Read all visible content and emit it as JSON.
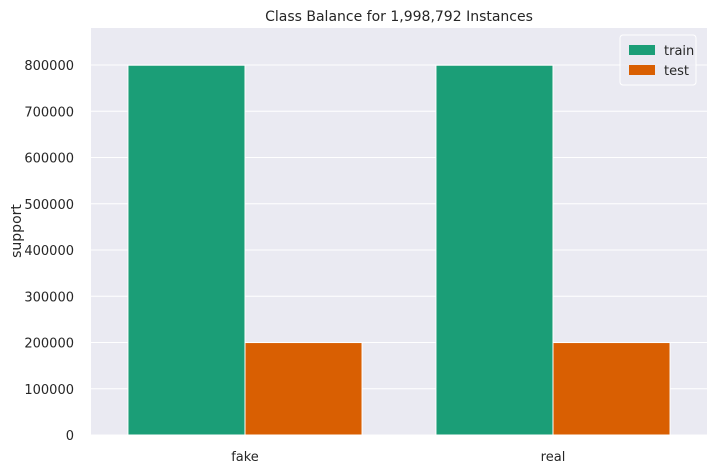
{
  "chart_data": {
    "type": "bar",
    "title": "Class Balance for 1,998,792 Instances",
    "xlabel": "",
    "ylabel": "support",
    "categories": [
      "fake",
      "real"
    ],
    "series": [
      {
        "name": "train",
        "values": [
          799517,
          799517
        ],
        "color": "#1b9e77"
      },
      {
        "name": "test",
        "values": [
          199879,
          199879
        ],
        "color": "#d95f02"
      }
    ],
    "ylim": [
      0,
      880000
    ],
    "yticks": [
      0,
      100000,
      200000,
      300000,
      400000,
      500000,
      600000,
      700000,
      800000
    ],
    "ytick_labels": [
      "0",
      "100000",
      "200000",
      "300000",
      "400000",
      "500000",
      "600000",
      "700000",
      "800000"
    ],
    "grid": true,
    "legend_position": "top-right",
    "background_color": "#eaeaf2"
  }
}
